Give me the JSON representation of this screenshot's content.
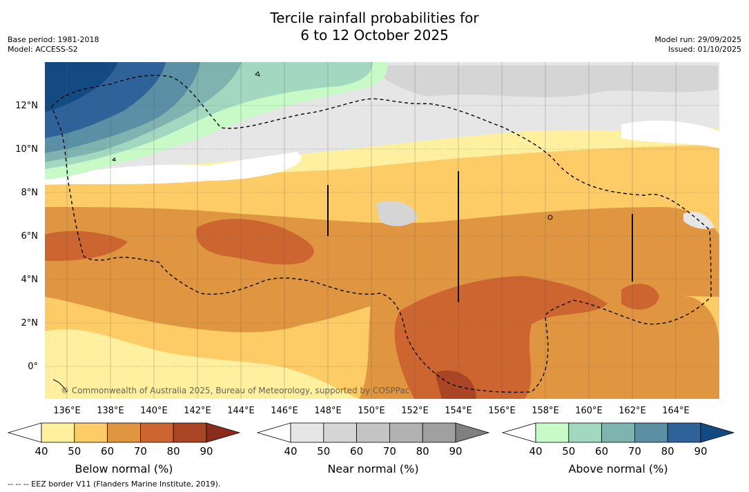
{
  "title_line1": "Tercile rainfall probabilities for",
  "title_line2": "6 to 12 October 2025",
  "base_period": "Base period: 1981-2018",
  "model": "Model: ACCESS-S2",
  "model_run": "Model run: 29/09/2025",
  "issued": "Issued: 01/10/2025",
  "copyright": "© Commonwealth of Australia 2025, Bureau of Meteorology, supported by COSPPac",
  "footnote": "-- -- -- EEZ border V11 (Flanders Marine Institute, 2019).",
  "map": {
    "lat_labels": [
      "12°N",
      "10°N",
      "8°N",
      "6°N",
      "4°N",
      "2°N",
      "0°"
    ],
    "lon_labels": [
      "136°E",
      "138°E",
      "140°E",
      "142°E",
      "144°E",
      "146°E",
      "148°E",
      "150°E",
      "152°E",
      "154°E",
      "156°E",
      "158°E",
      "160°E",
      "162°E",
      "164°E"
    ]
  },
  "colorbars": [
    {
      "label": "Below normal (%)",
      "ticks": [
        "40",
        "50",
        "60",
        "70",
        "80",
        "90"
      ],
      "colors": [
        "#ffffff",
        "#fff0a0",
        "#fdcc66",
        "#e09640",
        "#cc6530",
        "#a94424",
        "#8a2c1a"
      ]
    },
    {
      "label": "Near normal (%)",
      "ticks": [
        "40",
        "50",
        "60",
        "70",
        "80",
        "90"
      ],
      "colors": [
        "#ffffff",
        "#e6e6e6",
        "#d5d5d5",
        "#c4c4c4",
        "#b2b2b2",
        "#a0a0a0",
        "#808080"
      ]
    },
    {
      "label": "Above normal (%)",
      "ticks": [
        "40",
        "50",
        "60",
        "70",
        "80",
        "90"
      ],
      "colors": [
        "#ffffff",
        "#c8fac8",
        "#a3d8c0",
        "#7fb3b0",
        "#5a8fa6",
        "#2f6299",
        "#144a82"
      ]
    }
  ]
}
